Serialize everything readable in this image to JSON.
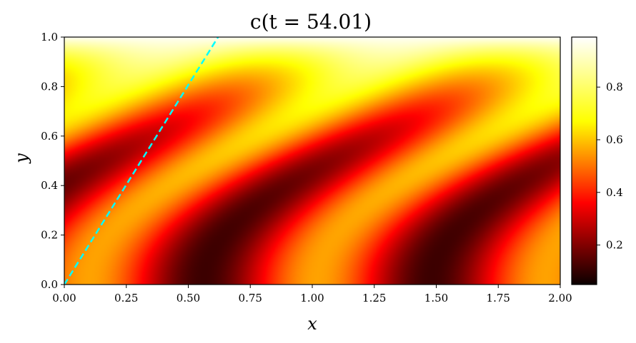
{
  "chart_data": {
    "type": "heatmap",
    "title": "c(t = 54.01)",
    "xlabel": "x",
    "ylabel": "y",
    "xlim": [
      0,
      2
    ],
    "ylim": [
      0,
      1
    ],
    "x_ticks": [
      "0.00",
      "0.25",
      "0.50",
      "0.75",
      "1.00",
      "1.25",
      "1.50",
      "1.75",
      "2.00"
    ],
    "y_ticks": [
      "0.0",
      "0.2",
      "0.4",
      "0.6",
      "0.8",
      "1.0"
    ],
    "x_tick_values": [
      0,
      0.25,
      0.5,
      0.75,
      1.0,
      1.25,
      1.5,
      1.75,
      2.0
    ],
    "y_tick_values": [
      0,
      0.2,
      0.4,
      0.6,
      0.8,
      1.0
    ],
    "colormap": "hot",
    "colorbar": {
      "min": 0.05,
      "max": 0.99,
      "ticks": [
        "0.2",
        "0.4",
        "0.6",
        "0.8"
      ],
      "tick_values": [
        0.2,
        0.4,
        0.6,
        0.8
      ]
    },
    "overlay_line": {
      "style": "dashed",
      "color": "#00ffff",
      "points": [
        [
          0,
          0
        ],
        [
          0.62,
          1.0
        ]
      ]
    }
  }
}
